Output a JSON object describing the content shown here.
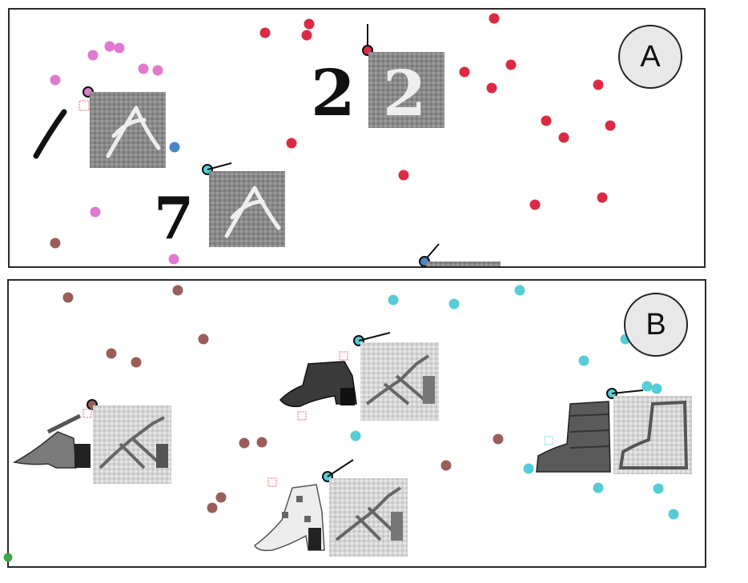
{
  "panels": [
    {
      "id": "A",
      "label": "A"
    },
    {
      "id": "B",
      "label": "B"
    }
  ],
  "colors": {
    "panel_a_class_pink": "#e07ad0",
    "panel_a_class_red": "#dc2a44",
    "panel_a_class_blue": "#4a86c8",
    "panel_a_class_brown": "#9a5e5a",
    "panel_b_class_brown": "#9a5e5a",
    "panel_b_class_cyan": "#55cdd6",
    "panel_b_class_green": "#3da64a"
  },
  "icons": {
    "digit_samples": [
      "digit-1-sample",
      "digit-2-sample",
      "digit-7-sample"
    ],
    "shoe_samples": [
      "sandal-sample",
      "ankle-boot-sample",
      "heeled-sandal-sample",
      "boot-sample"
    ],
    "reconstructions": [
      "reconstruction-image"
    ]
  }
}
